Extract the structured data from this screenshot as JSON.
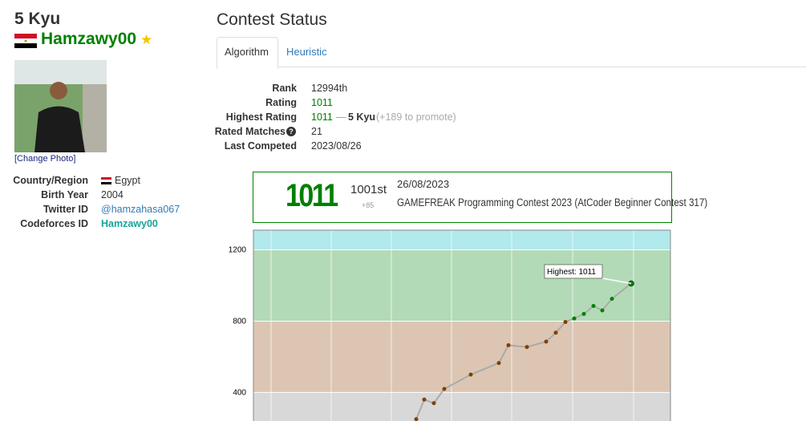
{
  "profile": {
    "rank": "5 Kyu",
    "username": "Hamzawy00",
    "change_photo": "[Change Photo]",
    "fields": [
      {
        "label": "Country/Region",
        "value": "Egypt"
      },
      {
        "label": "Birth Year",
        "value": "2004"
      },
      {
        "label": "Twitter ID",
        "value": "@hamzahasa067"
      },
      {
        "label": "Codeforces ID",
        "value": "Hamzawy00"
      }
    ]
  },
  "section_title": "Contest Status",
  "tabs": [
    "Algorithm",
    "Heuristic"
  ],
  "status": {
    "rows": [
      {
        "label": "Rank",
        "value": "12994th"
      },
      {
        "label": "Rating",
        "value": "1011"
      },
      {
        "label": "Highest Rating",
        "value": "1011",
        "separator": "—",
        "kyu": "5 Kyu",
        "note": "(+189 to promote)"
      },
      {
        "label": "Rated Matches",
        "value": "21"
      },
      {
        "label": "Last Competed",
        "value": "2023/08/26"
      }
    ]
  },
  "contest_box": {
    "rating": "1011",
    "place": "1001st",
    "diff": "+85",
    "date": "26/08/2023",
    "name": "GAMEFREAK Programming Contest 2023 (AtCoder Beginner Contest 317)"
  },
  "chart_data": {
    "type": "line",
    "annotation": "Highest: 1011",
    "values": [
      250,
      360,
      340,
      420,
      500,
      565,
      665,
      655,
      685,
      735,
      795,
      815,
      840,
      885,
      860,
      925,
      1011
    ],
    "ylim": [
      240,
      1310
    ],
    "yticks": [
      400,
      800,
      1200
    ],
    "grid": true,
    "line_color": "#aaaaaa"
  }
}
